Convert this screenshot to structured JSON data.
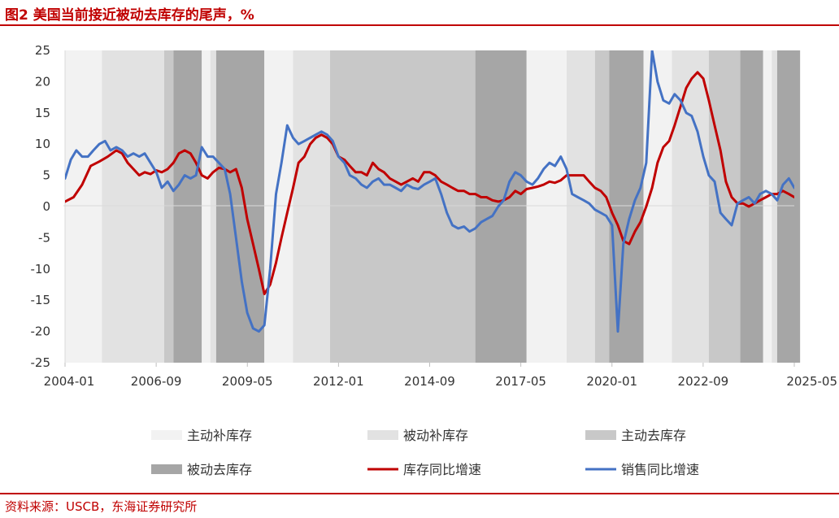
{
  "figure_title": "图2  美国当前接近被动去库存的尾声，%",
  "source_note": "资料来源：USCB，东海证券研究所",
  "chart_data": {
    "type": "line",
    "x_range": [
      "2004-01",
      "2025-05"
    ],
    "x_tick_labels": [
      "2004-01",
      "2006-09",
      "2009-05",
      "2012-01",
      "2014-09",
      "2017-05",
      "2020-01",
      "2022-09",
      "2025-05"
    ],
    "ylim": [
      -25,
      25
    ],
    "y_ticks": [
      25,
      20,
      15,
      10,
      5,
      0,
      -5,
      -10,
      -15,
      -20,
      -25
    ],
    "xlabel": "",
    "ylabel": "",
    "phases": [
      {
        "key": "active_restock",
        "name": "主动补库存",
        "color": "#f2f2f2"
      },
      {
        "key": "passive_restock",
        "name": "被动补库存",
        "color": "#e2e2e2"
      },
      {
        "key": "active_destock",
        "name": "主动去库存",
        "color": "#c8c8c8"
      },
      {
        "key": "passive_destock",
        "name": "被动去库存",
        "color": "#a6a6a6"
      }
    ],
    "phase_periods": [
      {
        "phase": "active_restock",
        "start": 2004.0,
        "end": 2005.08
      },
      {
        "phase": "passive_restock",
        "start": 2005.08,
        "end": 2006.9
      },
      {
        "phase": "active_destock",
        "start": 2006.9,
        "end": 2007.17
      },
      {
        "phase": "passive_destock",
        "start": 2007.17,
        "end": 2008.0
      },
      {
        "phase": "active_restock",
        "start": 2008.0,
        "end": 2008.25
      },
      {
        "phase": "passive_restock",
        "start": 2008.25,
        "end": 2008.42
      },
      {
        "phase": "passive_destock",
        "start": 2008.42,
        "end": 2009.83
      },
      {
        "phase": "active_restock",
        "start": 2009.83,
        "end": 2010.67
      },
      {
        "phase": "passive_restock",
        "start": 2010.67,
        "end": 2011.75
      },
      {
        "phase": "active_destock",
        "start": 2011.75,
        "end": 2016.0
      },
      {
        "phase": "passive_destock",
        "start": 2016.0,
        "end": 2017.5
      },
      {
        "phase": "active_restock",
        "start": 2017.5,
        "end": 2018.67
      },
      {
        "phase": "passive_restock",
        "start": 2018.67,
        "end": 2019.5
      },
      {
        "phase": "active_destock",
        "start": 2019.5,
        "end": 2019.92
      },
      {
        "phase": "passive_destock",
        "start": 2019.92,
        "end": 2020.92
      },
      {
        "phase": "active_restock",
        "start": 2020.92,
        "end": 2021.75
      },
      {
        "phase": "passive_restock",
        "start": 2021.75,
        "end": 2022.83
      },
      {
        "phase": "active_destock",
        "start": 2022.83,
        "end": 2023.75
      },
      {
        "phase": "passive_destock",
        "start": 2023.75,
        "end": 2024.42
      },
      {
        "phase": "active_restock",
        "start": 2024.42,
        "end": 2024.67
      },
      {
        "phase": "passive_restock",
        "start": 2024.67,
        "end": 2024.83
      },
      {
        "phase": "passive_destock",
        "start": 2024.83,
        "end": 2025.5
      }
    ],
    "series": [
      {
        "name": "库存同比增速",
        "color": "#c00000",
        "points": [
          [
            2004.0,
            0.8
          ],
          [
            2004.25,
            1.5
          ],
          [
            2004.5,
            3.5
          ],
          [
            2004.75,
            6.5
          ],
          [
            2005.0,
            7.2
          ],
          [
            2005.25,
            8.0
          ],
          [
            2005.5,
            9.0
          ],
          [
            2005.67,
            8.5
          ],
          [
            2005.83,
            7.0
          ],
          [
            2006.0,
            6.0
          ],
          [
            2006.17,
            5.0
          ],
          [
            2006.33,
            5.5
          ],
          [
            2006.5,
            5.2
          ],
          [
            2006.67,
            5.8
          ],
          [
            2006.83,
            5.5
          ],
          [
            2007.0,
            6.0
          ],
          [
            2007.17,
            7.0
          ],
          [
            2007.33,
            8.5
          ],
          [
            2007.5,
            9.0
          ],
          [
            2007.67,
            8.5
          ],
          [
            2007.83,
            7.0
          ],
          [
            2008.0,
            5.0
          ],
          [
            2008.17,
            4.5
          ],
          [
            2008.33,
            5.5
          ],
          [
            2008.5,
            6.2
          ],
          [
            2008.67,
            6.0
          ],
          [
            2008.83,
            5.5
          ],
          [
            2009.0,
            6.0
          ],
          [
            2009.17,
            3.0
          ],
          [
            2009.33,
            -2.0
          ],
          [
            2009.5,
            -6.0
          ],
          [
            2009.67,
            -10.0
          ],
          [
            2009.83,
            -14.0
          ],
          [
            2010.0,
            -12.5
          ],
          [
            2010.17,
            -9.0
          ],
          [
            2010.33,
            -5.0
          ],
          [
            2010.5,
            -1.0
          ],
          [
            2010.67,
            3.0
          ],
          [
            2010.83,
            7.0
          ],
          [
            2011.0,
            8.0
          ],
          [
            2011.17,
            10.0
          ],
          [
            2011.33,
            11.0
          ],
          [
            2011.5,
            11.5
          ],
          [
            2011.67,
            11.0
          ],
          [
            2011.83,
            10.0
          ],
          [
            2012.0,
            8.0
          ],
          [
            2012.17,
            7.5
          ],
          [
            2012.33,
            6.5
          ],
          [
            2012.5,
            5.5
          ],
          [
            2012.67,
            5.5
          ],
          [
            2012.83,
            5.0
          ],
          [
            2013.0,
            7.0
          ],
          [
            2013.17,
            6.0
          ],
          [
            2013.33,
            5.5
          ],
          [
            2013.5,
            4.5
          ],
          [
            2013.67,
            4.0
          ],
          [
            2013.83,
            3.5
          ],
          [
            2014.0,
            4.0
          ],
          [
            2014.17,
            4.5
          ],
          [
            2014.33,
            4.0
          ],
          [
            2014.5,
            5.5
          ],
          [
            2014.67,
            5.5
          ],
          [
            2014.83,
            5.0
          ],
          [
            2015.0,
            4.0
          ],
          [
            2015.17,
            3.5
          ],
          [
            2015.33,
            3.0
          ],
          [
            2015.5,
            2.5
          ],
          [
            2015.67,
            2.5
          ],
          [
            2015.83,
            2.0
          ],
          [
            2016.0,
            2.0
          ],
          [
            2016.17,
            1.5
          ],
          [
            2016.33,
            1.5
          ],
          [
            2016.5,
            1.0
          ],
          [
            2016.67,
            0.8
          ],
          [
            2016.83,
            1.0
          ],
          [
            2017.0,
            1.5
          ],
          [
            2017.17,
            2.5
          ],
          [
            2017.33,
            2.0
          ],
          [
            2017.5,
            2.8
          ],
          [
            2017.67,
            3.0
          ],
          [
            2017.83,
            3.2
          ],
          [
            2018.0,
            3.5
          ],
          [
            2018.17,
            4.0
          ],
          [
            2018.33,
            3.8
          ],
          [
            2018.5,
            4.2
          ],
          [
            2018.67,
            5.0
          ],
          [
            2018.83,
            5.0
          ],
          [
            2019.0,
            5.0
          ],
          [
            2019.17,
            5.0
          ],
          [
            2019.33,
            4.0
          ],
          [
            2019.5,
            3.0
          ],
          [
            2019.67,
            2.5
          ],
          [
            2019.83,
            1.5
          ],
          [
            2020.0,
            -1.0
          ],
          [
            2020.17,
            -3.0
          ],
          [
            2020.33,
            -5.5
          ],
          [
            2020.5,
            -6.0
          ],
          [
            2020.67,
            -4.0
          ],
          [
            2020.83,
            -2.5
          ],
          [
            2021.0,
            0.0
          ],
          [
            2021.17,
            3.0
          ],
          [
            2021.33,
            7.0
          ],
          [
            2021.5,
            9.5
          ],
          [
            2021.67,
            10.5
          ],
          [
            2021.83,
            13.0
          ],
          [
            2022.0,
            16.0
          ],
          [
            2022.17,
            19.0
          ],
          [
            2022.33,
            20.5
          ],
          [
            2022.5,
            21.5
          ],
          [
            2022.67,
            20.5
          ],
          [
            2022.83,
            17.0
          ],
          [
            2023.0,
            13.0
          ],
          [
            2023.17,
            9.0
          ],
          [
            2023.33,
            4.0
          ],
          [
            2023.5,
            1.5
          ],
          [
            2023.67,
            0.5
          ],
          [
            2023.83,
            0.5
          ],
          [
            2024.0,
            0.0
          ],
          [
            2024.17,
            0.5
          ],
          [
            2024.33,
            1.0
          ],
          [
            2024.5,
            1.5
          ],
          [
            2024.67,
            2.0
          ],
          [
            2024.83,
            2.0
          ],
          [
            2025.0,
            2.5
          ],
          [
            2025.17,
            2.0
          ],
          [
            2025.33,
            1.5
          ]
        ]
      },
      {
        "name": "销售同比增速",
        "color": "#4472c4",
        "points": [
          [
            2004.0,
            4.5
          ],
          [
            2004.17,
            7.5
          ],
          [
            2004.33,
            9.0
          ],
          [
            2004.5,
            8.0
          ],
          [
            2004.67,
            8.0
          ],
          [
            2004.83,
            9.0
          ],
          [
            2005.0,
            10.0
          ],
          [
            2005.17,
            10.5
          ],
          [
            2005.33,
            9.0
          ],
          [
            2005.5,
            9.5
          ],
          [
            2005.67,
            9.0
          ],
          [
            2005.83,
            8.0
          ],
          [
            2006.0,
            8.5
          ],
          [
            2006.17,
            8.0
          ],
          [
            2006.33,
            8.5
          ],
          [
            2006.5,
            7.0
          ],
          [
            2006.67,
            5.5
          ],
          [
            2006.83,
            3.0
          ],
          [
            2007.0,
            4.0
          ],
          [
            2007.17,
            2.5
          ],
          [
            2007.33,
            3.5
          ],
          [
            2007.5,
            5.0
          ],
          [
            2007.67,
            4.5
          ],
          [
            2007.83,
            5.0
          ],
          [
            2008.0,
            9.5
          ],
          [
            2008.17,
            8.0
          ],
          [
            2008.33,
            8.0
          ],
          [
            2008.5,
            7.0
          ],
          [
            2008.67,
            6.0
          ],
          [
            2008.83,
            2.0
          ],
          [
            2009.0,
            -5.0
          ],
          [
            2009.17,
            -12.0
          ],
          [
            2009.33,
            -17.0
          ],
          [
            2009.5,
            -19.5
          ],
          [
            2009.67,
            -20.0
          ],
          [
            2009.83,
            -19.0
          ],
          [
            2010.0,
            -10.0
          ],
          [
            2010.17,
            2.0
          ],
          [
            2010.33,
            7.0
          ],
          [
            2010.5,
            13.0
          ],
          [
            2010.67,
            11.0
          ],
          [
            2010.83,
            10.0
          ],
          [
            2011.0,
            10.5
          ],
          [
            2011.17,
            11.0
          ],
          [
            2011.33,
            11.5
          ],
          [
            2011.5,
            12.0
          ],
          [
            2011.67,
            11.5
          ],
          [
            2011.83,
            10.5
          ],
          [
            2012.0,
            8.0
          ],
          [
            2012.17,
            7.0
          ],
          [
            2012.33,
            5.0
          ],
          [
            2012.5,
            4.5
          ],
          [
            2012.67,
            3.5
          ],
          [
            2012.83,
            3.0
          ],
          [
            2013.0,
            4.0
          ],
          [
            2013.17,
            4.5
          ],
          [
            2013.33,
            3.5
          ],
          [
            2013.5,
            3.5
          ],
          [
            2013.67,
            3.0
          ],
          [
            2013.83,
            2.5
          ],
          [
            2014.0,
            3.5
          ],
          [
            2014.17,
            3.0
          ],
          [
            2014.33,
            2.8
          ],
          [
            2014.5,
            3.5
          ],
          [
            2014.67,
            4.0
          ],
          [
            2014.83,
            4.5
          ],
          [
            2015.0,
            2.0
          ],
          [
            2015.17,
            -1.0
          ],
          [
            2015.33,
            -3.0
          ],
          [
            2015.5,
            -3.5
          ],
          [
            2015.67,
            -3.2
          ],
          [
            2015.83,
            -4.0
          ],
          [
            2016.0,
            -3.5
          ],
          [
            2016.17,
            -2.5
          ],
          [
            2016.33,
            -2.0
          ],
          [
            2016.5,
            -1.5
          ],
          [
            2016.67,
            0.0
          ],
          [
            2016.83,
            1.0
          ],
          [
            2017.0,
            4.0
          ],
          [
            2017.17,
            5.5
          ],
          [
            2017.33,
            5.0
          ],
          [
            2017.5,
            4.0
          ],
          [
            2017.67,
            3.5
          ],
          [
            2017.83,
            4.5
          ],
          [
            2018.0,
            6.0
          ],
          [
            2018.17,
            7.0
          ],
          [
            2018.33,
            6.5
          ],
          [
            2018.5,
            8.0
          ],
          [
            2018.67,
            6.0
          ],
          [
            2018.83,
            2.0
          ],
          [
            2019.0,
            1.5
          ],
          [
            2019.17,
            1.0
          ],
          [
            2019.33,
            0.5
          ],
          [
            2019.5,
            -0.5
          ],
          [
            2019.67,
            -1.0
          ],
          [
            2019.83,
            -1.5
          ],
          [
            2020.0,
            -3.0
          ],
          [
            2020.17,
            -20.0
          ],
          [
            2020.33,
            -6.0
          ],
          [
            2020.5,
            -2.0
          ],
          [
            2020.67,
            1.0
          ],
          [
            2020.83,
            3.0
          ],
          [
            2021.0,
            7.0
          ],
          [
            2021.17,
            25.0
          ],
          [
            2021.33,
            20.0
          ],
          [
            2021.5,
            17.0
          ],
          [
            2021.67,
            16.5
          ],
          [
            2021.83,
            18.0
          ],
          [
            2022.0,
            17.0
          ],
          [
            2022.17,
            15.0
          ],
          [
            2022.33,
            14.5
          ],
          [
            2022.5,
            12.0
          ],
          [
            2022.67,
            8.0
          ],
          [
            2022.83,
            5.0
          ],
          [
            2023.0,
            4.0
          ],
          [
            2023.17,
            -1.0
          ],
          [
            2023.33,
            -2.0
          ],
          [
            2023.5,
            -3.0
          ],
          [
            2023.67,
            0.5
          ],
          [
            2023.83,
            1.0
          ],
          [
            2024.0,
            1.5
          ],
          [
            2024.17,
            0.5
          ],
          [
            2024.33,
            2.0
          ],
          [
            2024.5,
            2.5
          ],
          [
            2024.67,
            2.0
          ],
          [
            2024.83,
            1.0
          ],
          [
            2025.0,
            3.5
          ],
          [
            2025.17,
            4.5
          ],
          [
            2025.33,
            3.0
          ]
        ]
      }
    ]
  }
}
